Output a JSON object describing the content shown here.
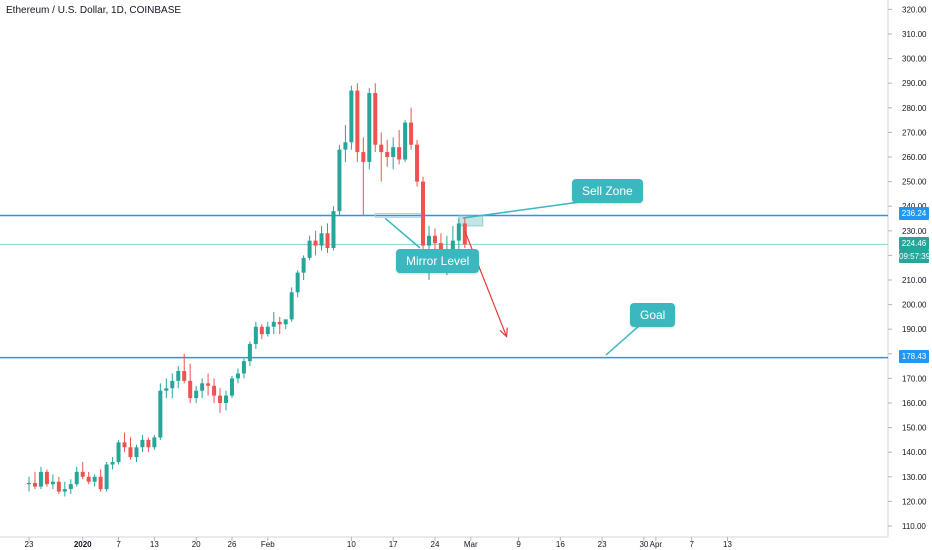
{
  "header": {
    "title": "Ethereum / U.S. Dollar, 1D, COINBASE"
  },
  "colors": {
    "up": "#26a69a",
    "down": "#ef5350",
    "level": "#2196f3",
    "mirror_line": "#9fd3e8",
    "current_line": "#8ed1c9",
    "callout": "#3ab7bf",
    "arrow": "#e53935",
    "sell_zone": "#8fd0cf"
  },
  "annotations": {
    "sell_zone_label": "Sell Zone",
    "mirror_level_label": "Mirror Level",
    "goal_label": "Goal"
  },
  "price_tags": {
    "upper_level": "236.24",
    "current_price": "224.46",
    "countdown": "09:57:39",
    "lower_level": "178.43"
  },
  "chart_data": {
    "type": "candlestick",
    "title": "Ethereum / U.S. Dollar, 1D, COINBASE",
    "ylim": [
      105,
      325
    ],
    "y_ticks": [
      "110.00",
      "120.00",
      "130.00",
      "140.00",
      "150.00",
      "160.00",
      "170.00",
      "180.00",
      "190.00",
      "200.00",
      "210.00",
      "220.00",
      "230.00",
      "240.00",
      "250.00",
      "260.00",
      "270.00",
      "280.00",
      "290.00",
      "300.00",
      "310.00",
      "320.00"
    ],
    "x_ticks": [
      {
        "label": "23",
        "day": 0
      },
      {
        "label": "2020",
        "day": 9,
        "bold": true
      },
      {
        "label": "7",
        "day": 15
      },
      {
        "label": "13",
        "day": 21
      },
      {
        "label": "20",
        "day": 28
      },
      {
        "label": "26",
        "day": 34
      },
      {
        "label": "Feb",
        "day": 40
      },
      {
        "label": "10",
        "day": 54
      },
      {
        "label": "17",
        "day": 61
      },
      {
        "label": "24",
        "day": 68
      },
      {
        "label": "Mar",
        "day": 74
      },
      {
        "label": "9",
        "day": 82
      },
      {
        "label": "16",
        "day": 89
      },
      {
        "label": "23",
        "day": 96
      },
      {
        "label": "30",
        "day": 103
      },
      {
        "label": "Apr",
        "day": 105
      },
      {
        "label": "7",
        "day": 111
      },
      {
        "label": "13",
        "day": 117
      }
    ],
    "candles": [
      {
        "o": 127,
        "h": 130,
        "l": 124,
        "c": 127.5
      },
      {
        "o": 127.5,
        "h": 132,
        "l": 125,
        "c": 126
      },
      {
        "o": 126,
        "h": 134,
        "l": 125,
        "c": 132
      },
      {
        "o": 132,
        "h": 133,
        "l": 126,
        "c": 127
      },
      {
        "o": 127,
        "h": 131,
        "l": 125,
        "c": 128
      },
      {
        "o": 128,
        "h": 130,
        "l": 123,
        "c": 124
      },
      {
        "o": 124,
        "h": 128,
        "l": 122,
        "c": 125
      },
      {
        "o": 125,
        "h": 129,
        "l": 123,
        "c": 127
      },
      {
        "o": 127,
        "h": 134,
        "l": 126,
        "c": 132
      },
      {
        "o": 132,
        "h": 136,
        "l": 129,
        "c": 130
      },
      {
        "o": 130,
        "h": 132,
        "l": 127,
        "c": 128
      },
      {
        "o": 128,
        "h": 131,
        "l": 126,
        "c": 130
      },
      {
        "o": 130,
        "h": 133,
        "l": 124,
        "c": 125
      },
      {
        "o": 125,
        "h": 136,
        "l": 124,
        "c": 135
      },
      {
        "o": 135,
        "h": 138,
        "l": 133,
        "c": 136
      },
      {
        "o": 136,
        "h": 145,
        "l": 135,
        "c": 144
      },
      {
        "o": 144,
        "h": 148,
        "l": 140,
        "c": 142
      },
      {
        "o": 142,
        "h": 146,
        "l": 137,
        "c": 138
      },
      {
        "o": 138,
        "h": 143,
        "l": 136,
        "c": 142
      },
      {
        "o": 142,
        "h": 147,
        "l": 140,
        "c": 145
      },
      {
        "o": 145,
        "h": 146,
        "l": 140,
        "c": 142
      },
      {
        "o": 142,
        "h": 147,
        "l": 141,
        "c": 146
      },
      {
        "o": 146,
        "h": 168,
        "l": 145,
        "c": 165
      },
      {
        "o": 165,
        "h": 170,
        "l": 162,
        "c": 166
      },
      {
        "o": 166,
        "h": 172,
        "l": 162,
        "c": 169
      },
      {
        "o": 169,
        "h": 175,
        "l": 166,
        "c": 173
      },
      {
        "o": 173,
        "h": 180,
        "l": 168,
        "c": 169
      },
      {
        "o": 169,
        "h": 176,
        "l": 160,
        "c": 162
      },
      {
        "o": 162,
        "h": 167,
        "l": 160,
        "c": 165
      },
      {
        "o": 165,
        "h": 170,
        "l": 162,
        "c": 168
      },
      {
        "o": 168,
        "h": 172,
        "l": 163,
        "c": 167
      },
      {
        "o": 167,
        "h": 170,
        "l": 160,
        "c": 163
      },
      {
        "o": 163,
        "h": 166,
        "l": 156,
        "c": 160
      },
      {
        "o": 160,
        "h": 165,
        "l": 157,
        "c": 163
      },
      {
        "o": 163,
        "h": 171,
        "l": 162,
        "c": 170
      },
      {
        "o": 170,
        "h": 174,
        "l": 168,
        "c": 172
      },
      {
        "o": 172,
        "h": 178,
        "l": 170,
        "c": 177
      },
      {
        "o": 177,
        "h": 185,
        "l": 175,
        "c": 184
      },
      {
        "o": 184,
        "h": 193,
        "l": 182,
        "c": 191
      },
      {
        "o": 191,
        "h": 192,
        "l": 186,
        "c": 188
      },
      {
        "o": 188,
        "h": 193,
        "l": 187,
        "c": 191
      },
      {
        "o": 191,
        "h": 197,
        "l": 188,
        "c": 193
      },
      {
        "o": 193,
        "h": 195,
        "l": 188,
        "c": 192
      },
      {
        "o": 192,
        "h": 194,
        "l": 190,
        "c": 194
      },
      {
        "o": 194,
        "h": 207,
        "l": 193,
        "c": 205
      },
      {
        "o": 205,
        "h": 214,
        "l": 203,
        "c": 213
      },
      {
        "o": 213,
        "h": 220,
        "l": 210,
        "c": 219
      },
      {
        "o": 219,
        "h": 228,
        "l": 218,
        "c": 226
      },
      {
        "o": 226,
        "h": 230,
        "l": 220,
        "c": 224
      },
      {
        "o": 224,
        "h": 232,
        "l": 222,
        "c": 229
      },
      {
        "o": 229,
        "h": 233,
        "l": 221,
        "c": 223
      },
      {
        "o": 223,
        "h": 240,
        "l": 222,
        "c": 238
      },
      {
        "o": 238,
        "h": 265,
        "l": 236,
        "c": 263
      },
      {
        "o": 263,
        "h": 273,
        "l": 258,
        "c": 266
      },
      {
        "o": 266,
        "h": 289,
        "l": 263,
        "c": 287
      },
      {
        "o": 287,
        "h": 290,
        "l": 258,
        "c": 262
      },
      {
        "o": 262,
        "h": 268,
        "l": 236,
        "c": 258
      },
      {
        "o": 258,
        "h": 288,
        "l": 255,
        "c": 286
      },
      {
        "o": 286,
        "h": 290,
        "l": 262,
        "c": 265
      },
      {
        "o": 265,
        "h": 270,
        "l": 250,
        "c": 262
      },
      {
        "o": 262,
        "h": 267,
        "l": 256,
        "c": 260
      },
      {
        "o": 260,
        "h": 268,
        "l": 255,
        "c": 264
      },
      {
        "o": 264,
        "h": 271,
        "l": 257,
        "c": 259
      },
      {
        "o": 259,
        "h": 275,
        "l": 258,
        "c": 274
      },
      {
        "o": 274,
        "h": 280,
        "l": 263,
        "c": 265
      },
      {
        "o": 265,
        "h": 267,
        "l": 248,
        "c": 250
      },
      {
        "o": 250,
        "h": 252,
        "l": 218,
        "c": 224
      },
      {
        "o": 224,
        "h": 232,
        "l": 210,
        "c": 228
      },
      {
        "o": 228,
        "h": 231,
        "l": 218,
        "c": 225
      },
      {
        "o": 225,
        "h": 229,
        "l": 214,
        "c": 219
      },
      {
        "o": 219,
        "h": 228,
        "l": 212,
        "c": 220
      },
      {
        "o": 220,
        "h": 232,
        "l": 216,
        "c": 226
      },
      {
        "o": 226,
        "h": 235,
        "l": 220,
        "c": 233
      },
      {
        "o": 233,
        "h": 235,
        "l": 223,
        "c": 224.46
      }
    ],
    "horizontal_levels": [
      {
        "price": 236.24,
        "label": "236.24"
      },
      {
        "price": 178.43,
        "label": "178.43"
      }
    ],
    "current_price": 224.46,
    "mirror_level": {
      "from_day": 58,
      "to_day": 66,
      "price_top": 237,
      "price_bottom": 235.5
    },
    "sell_zone": {
      "from_day": 72,
      "to_day": 76,
      "price_top": 236,
      "price_bottom": 232
    },
    "arrow": {
      "from_day": 73,
      "from_price": 230,
      "to_day": 80,
      "to_price": 187
    }
  }
}
